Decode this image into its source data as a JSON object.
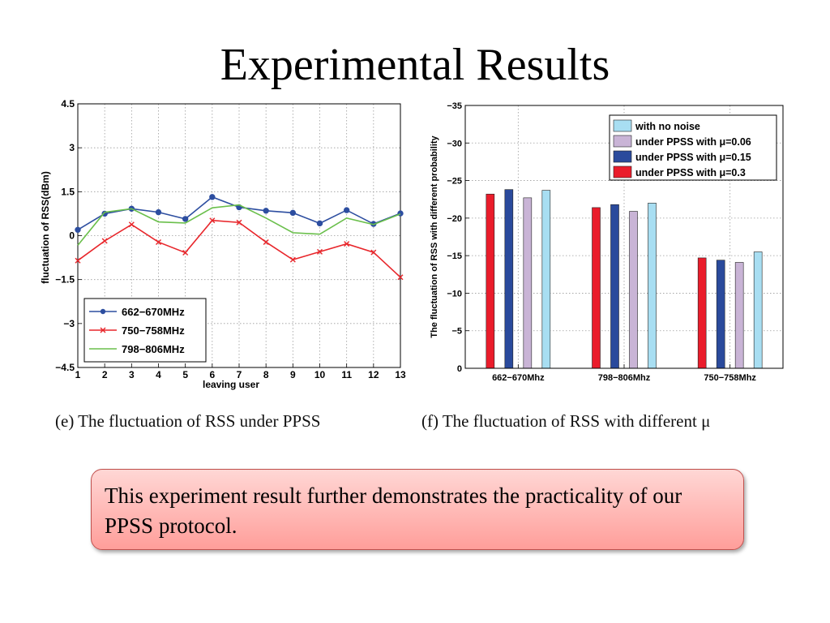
{
  "slide": {
    "title": "Experimental Results",
    "caption_e": "(e) The fluctuation of RSS under PPSS",
    "caption_f": "(f) The fluctuation of RSS with different μ",
    "note": "This experiment result further demonstrates the practicality of our PPSS protocol."
  },
  "chart_data": [
    {
      "type": "line",
      "xlabel": "leaving user",
      "ylabel": "fluctuation of RSS(dBm)",
      "x": [
        1,
        2,
        3,
        4,
        5,
        6,
        7,
        8,
        9,
        10,
        11,
        12,
        13
      ],
      "xlim": [
        1,
        13
      ],
      "ylim": [
        -4.5,
        4.5
      ],
      "yticks": [
        4.5,
        3,
        1.5,
        0,
        -1.5,
        -3,
        -4.5
      ],
      "yticklabels": [
        "4.5",
        "3",
        "1.5",
        "0",
        "−1.5",
        "−3",
        "−4.5"
      ],
      "xticklabels": [
        "1",
        "2",
        "3",
        "4",
        "5",
        "6",
        "7",
        "8",
        "9",
        "10",
        "11",
        "12",
        "13"
      ],
      "grid": true,
      "legend_position": "bottom-left",
      "series": [
        {
          "name": "662−670MHz",
          "color": "#2d4ea0",
          "marker": "dot",
          "values": [
            0.2,
            0.75,
            0.92,
            0.8,
            0.57,
            1.32,
            0.97,
            0.85,
            0.78,
            0.42,
            0.87,
            0.4,
            0.76
          ]
        },
        {
          "name": "750−758MHz",
          "color": "#e8262b",
          "marker": "x",
          "values": [
            -0.85,
            -0.18,
            0.38,
            -0.22,
            -0.58,
            0.52,
            0.45,
            -0.22,
            -0.82,
            -0.55,
            -0.28,
            -0.57,
            -1.42
          ]
        },
        {
          "name": "798−806MHz",
          "color": "#6abf4b",
          "marker": "none",
          "values": [
            -0.33,
            0.8,
            0.92,
            0.47,
            0.43,
            0.95,
            1.05,
            0.6,
            0.1,
            0.05,
            0.6,
            0.38,
            0.74
          ]
        }
      ]
    },
    {
      "type": "bar",
      "ylabel": "The fluctuation of RSS with different probability",
      "categories": [
        "662−670Mhz",
        "798−806Mhz",
        "750−758Mhz"
      ],
      "ylim": [
        -35,
        0
      ],
      "yticks": [
        -35,
        -30,
        -25,
        -20,
        -15,
        -10,
        -5,
        0
      ],
      "yticklabels": [
        "−35",
        "−30",
        "−25",
        "−20",
        "−15",
        "−10",
        "−5",
        "0"
      ],
      "grid": true,
      "legend_position": "top-right",
      "series": [
        {
          "name": "under PPSS with μ=0.3",
          "color": "#ea1c2b",
          "values": [
            -23.2,
            -21.4,
            -14.7
          ]
        },
        {
          "name": "under PPSS with μ=0.15",
          "color": "#2a4a9c",
          "values": [
            -23.8,
            -21.8,
            -14.4
          ]
        },
        {
          "name": "under PPSS with μ=0.06",
          "color": "#c9b4d6",
          "values": [
            -22.7,
            -20.9,
            -14.1
          ]
        },
        {
          "name": "with no noise",
          "color": "#a8def2",
          "values": [
            -23.7,
            -22.0,
            -15.5
          ]
        }
      ],
      "legend_order": [
        "with no noise",
        "under PPSS with μ=0.06",
        "under PPSS with μ=0.15",
        "under PPSS with μ=0.3"
      ]
    }
  ]
}
